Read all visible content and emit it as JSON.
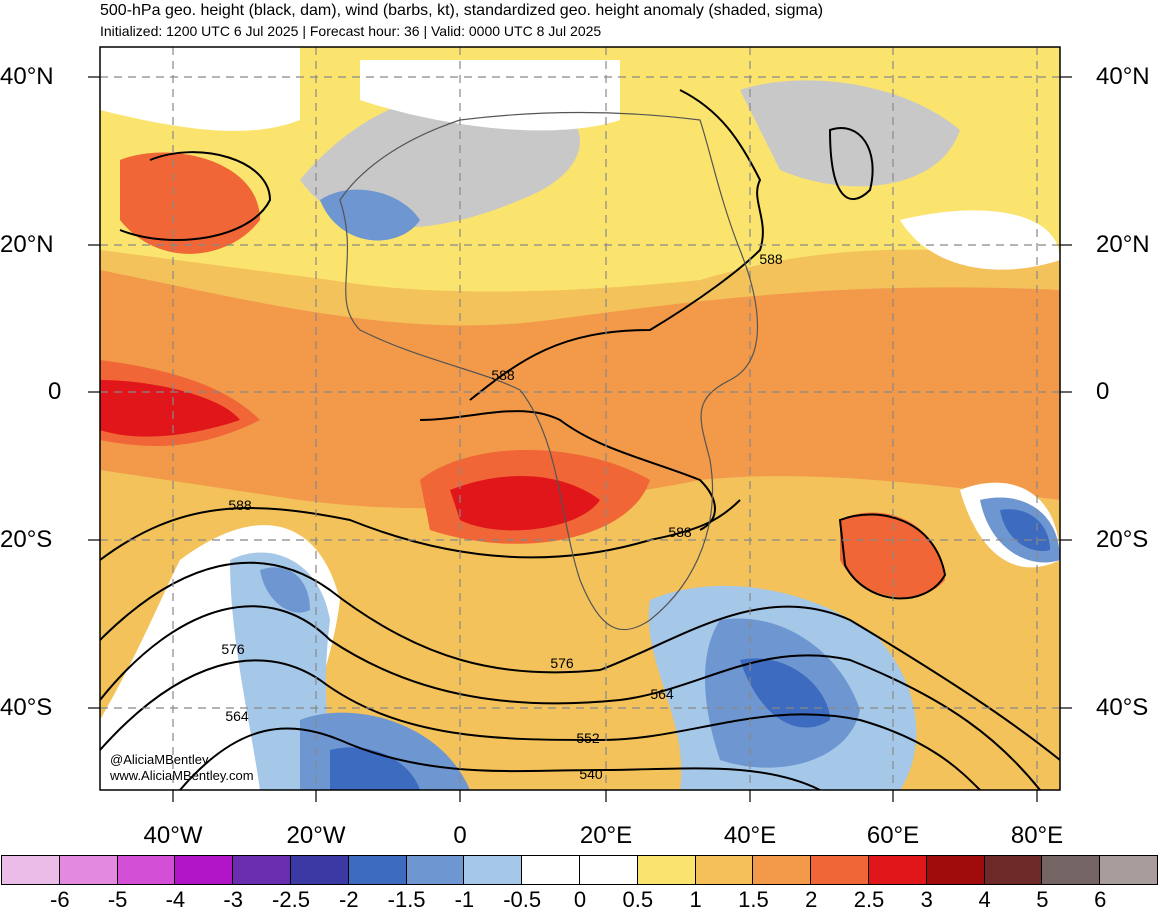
{
  "header": {
    "title": "500-hPa geo. height (black, dam), wind (barbs, kt), standardized geo. height anomaly (shaded, sigma)",
    "subtitle": "Initialized: 1200 UTC 6 Jul 2025 | Forecast hour: 36 | Valid: 0000 UTC 8 Jul 2025"
  },
  "axes": {
    "lat_left": [
      "40°N",
      "20°N",
      "0",
      "20°S",
      "40°S"
    ],
    "lat_right": [
      "40°N",
      "20°N",
      "0",
      "20°S",
      "40°S"
    ],
    "lon": [
      "40°W",
      "20°W",
      "0",
      "20°E",
      "40°E",
      "60°E",
      "80°E"
    ]
  },
  "contour_labels": [
    "588",
    "588",
    "588",
    "588",
    "576",
    "576",
    "564",
    "564",
    "552",
    "540"
  ],
  "credits": {
    "handle": "@AliciaMBentley",
    "site": "www.AliciaMBentley.com"
  },
  "colorbar": {
    "ticks": [
      "-6",
      "-5",
      "-4",
      "-3",
      "-2.5",
      "-2",
      "-1.5",
      "-1",
      "-0.5",
      "0",
      "0.5",
      "1",
      "1.5",
      "2",
      "2.5",
      "3",
      "4",
      "5",
      "6"
    ],
    "colors": [
      "#ecbce8",
      "#e38ae0",
      "#d24fd6",
      "#b114c7",
      "#6a2db0",
      "#3b39a4",
      "#3c6bbf",
      "#6e96d1",
      "#a5c7e8",
      "#ffffff",
      "#ffffff",
      "#fbe46d",
      "#f5c05a",
      "#f29a4a",
      "#f06636",
      "#e1161a",
      "#a00b0b",
      "#6e2a29",
      "#756464",
      "#a89c9c"
    ]
  },
  "colors": {
    "land_gray": "#c8c8c8",
    "contour": "#000000",
    "grid": "#888888"
  }
}
